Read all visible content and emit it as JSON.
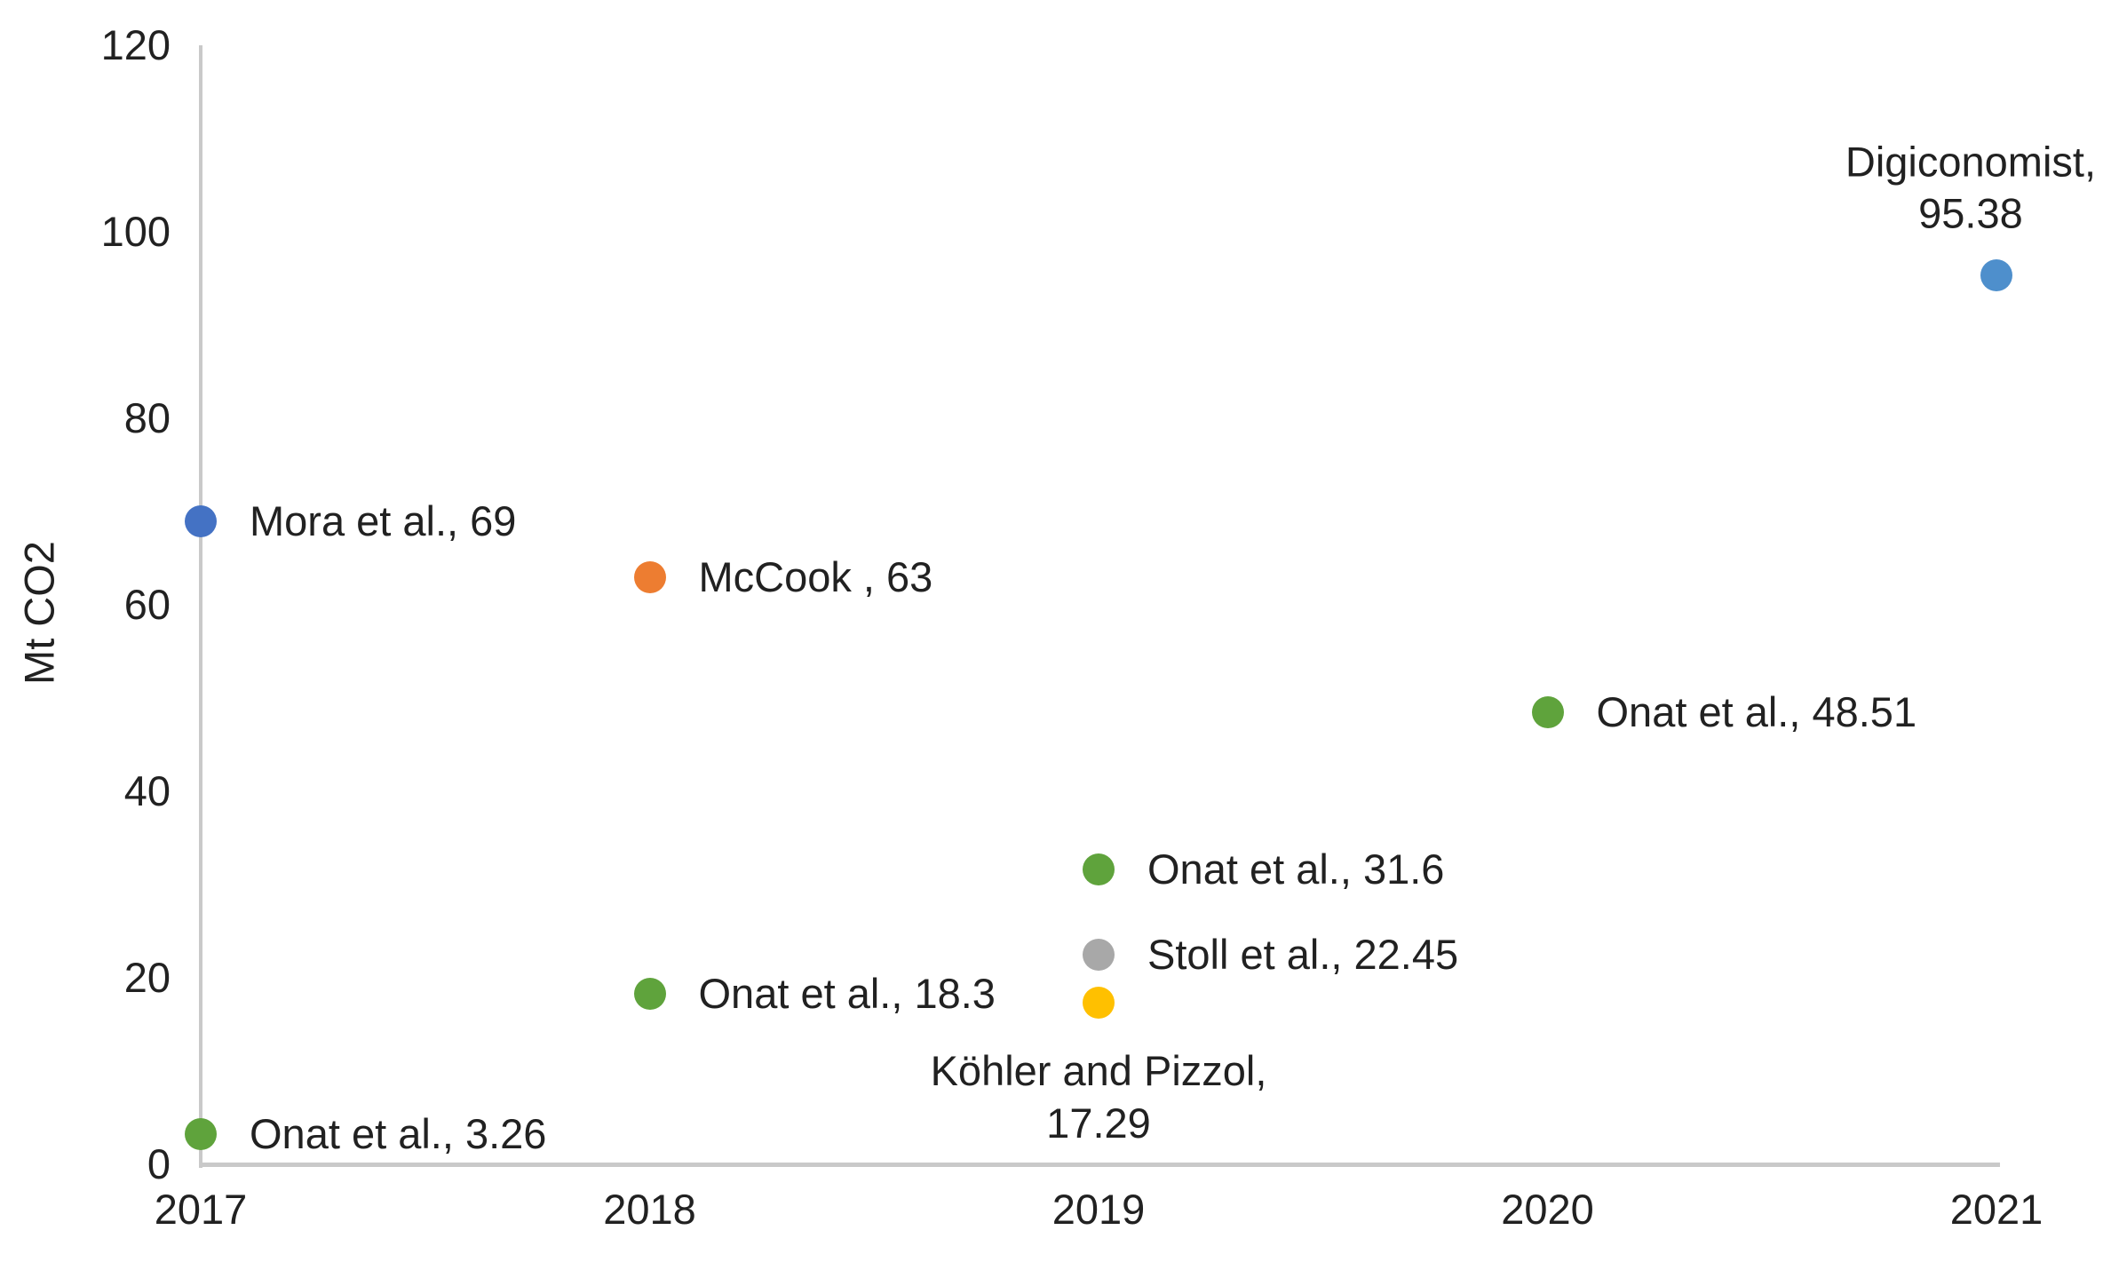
{
  "chart_data": {
    "type": "scatter",
    "title": "",
    "xlabel": "",
    "ylabel": "Mt CO2",
    "xlim": [
      2017,
      2021
    ],
    "ylim": [
      0,
      120
    ],
    "x_tick_labels": [
      "2017",
      "2018",
      "2019",
      "2020",
      "2021"
    ],
    "x_tick_values": [
      2017,
      2018,
      2019,
      2020,
      2021
    ],
    "y_tick_labels": [
      "0",
      "20",
      "40",
      "60",
      "80",
      "100",
      "120"
    ],
    "y_tick_values": [
      0,
      20,
      40,
      60,
      80,
      100,
      120
    ],
    "grid": false,
    "legend": "none",
    "points": [
      {
        "label": "Mora et al., 69",
        "x": 2017,
        "y": 69,
        "color": "#4472c4",
        "label_placement": "right"
      },
      {
        "label": "Onat et al., 3.26",
        "x": 2017,
        "y": 3.26,
        "color": "#5fa33c",
        "label_placement": "right"
      },
      {
        "label": "McCook , 63",
        "x": 2018,
        "y": 63,
        "color": "#ed7d31",
        "label_placement": "right"
      },
      {
        "label": "Onat et al., 18.3",
        "x": 2018,
        "y": 18.3,
        "color": "#5fa33c",
        "label_placement": "right"
      },
      {
        "label": "Onat et al., 31.6",
        "x": 2019,
        "y": 31.6,
        "color": "#5fa33c",
        "label_placement": "right"
      },
      {
        "label": "Stoll et al., 22.45",
        "x": 2019,
        "y": 22.45,
        "color": "#a8a8a8",
        "label_placement": "right"
      },
      {
        "label": "Köhler and Pizzol,\n17.29",
        "x": 2019,
        "y": 17.29,
        "color": "#ffc000",
        "label_placement": "below"
      },
      {
        "label": "Onat et al., 48.51",
        "x": 2020,
        "y": 48.51,
        "color": "#5fa33c",
        "label_placement": "right"
      },
      {
        "label": "Digiconomist,\n95.38",
        "x": 2021,
        "y": 95.38,
        "color": "#4e8fcc",
        "label_placement": "above"
      }
    ]
  },
  "colors": {
    "background": "#ffffff",
    "axis_line": "#c9c9c9",
    "text": "#212121"
  }
}
